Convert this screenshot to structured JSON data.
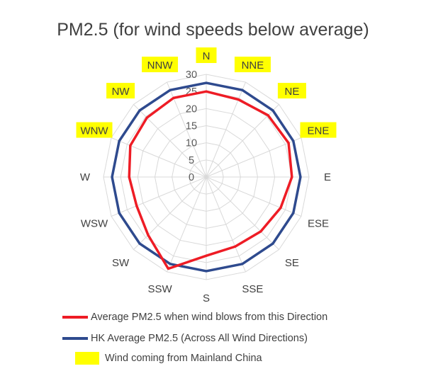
{
  "chart_data": {
    "type": "radar",
    "title": "PM2.5 (for wind speeds below average)",
    "categories": [
      "N",
      "NNE",
      "NE",
      "ENE",
      "E",
      "ESE",
      "SE",
      "SSE",
      "S",
      "SSW",
      "SW",
      "WSW",
      "W",
      "WNW",
      "NW",
      "NNW"
    ],
    "highlighted_categories": [
      "N",
      "NNE",
      "NE",
      "ENE",
      "WNW",
      "NW",
      "NNW"
    ],
    "radial_ticks": [
      0,
      5,
      10,
      15,
      20,
      25,
      30
    ],
    "rlim": [
      0,
      30
    ],
    "series": [
      {
        "name": "Average PM2.5 when wind blows from this Direction",
        "color": "#ee1c25",
        "values": [
          25,
          24.5,
          25.5,
          26,
          25,
          23.5,
          22.5,
          22,
          23,
          29,
          24,
          22,
          22.5,
          24,
          24.5,
          25
        ]
      },
      {
        "name": "HK Average PM2.5 (Across All Wind Directions)",
        "color": "#2e4a8e",
        "values": [
          27.5,
          27.5,
          27.5,
          27.5,
          27.5,
          27.5,
          27.5,
          27.5,
          27.5,
          27.5,
          27.5,
          27.5,
          27.5,
          27.5,
          27.5,
          27.5
        ]
      }
    ],
    "highlight_legend": "Wind coming from Mainland China",
    "highlight_color": "#ffff00"
  }
}
